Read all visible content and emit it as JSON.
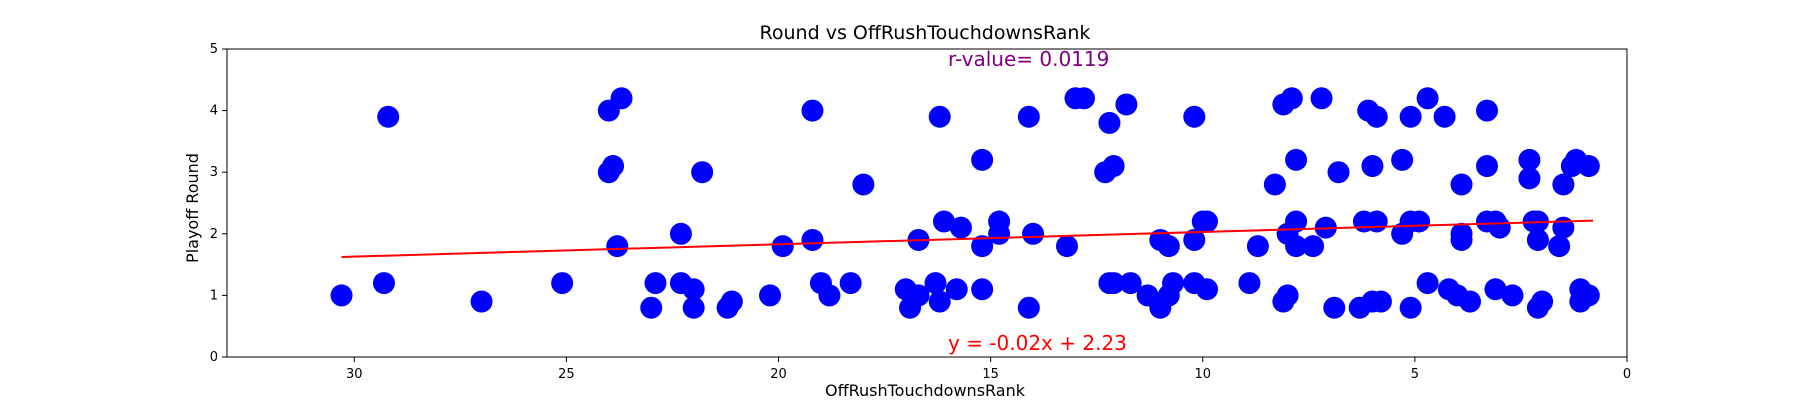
{
  "chart_data": {
    "type": "scatter",
    "title": "Round vs OffRushTouchdownsRank",
    "xlabel": "OffRushTouchdownsRank",
    "ylabel": "Playoff Round",
    "xlim": [
      33,
      0
    ],
    "ylim": [
      0,
      5
    ],
    "x_inverted": true,
    "x_ticks": [
      "30",
      "25",
      "20",
      "15",
      "10",
      "5",
      "0"
    ],
    "y_ticks": [
      "0",
      "1",
      "2",
      "3",
      "4",
      "5"
    ],
    "grid": false,
    "legend": "none",
    "point_color": "#0000ff",
    "line_color": "#ff0000",
    "regression": {
      "slope": -0.02,
      "intercept": 2.23,
      "x_range": [
        30.3,
        0.8
      ]
    },
    "annotations": {
      "r_value": "r-value= 0.0119",
      "r_value_color": "#800080",
      "equation": "y = -0.02x + 2.23",
      "equation_color": "#ff0000"
    },
    "points": [
      {
        "x": 30.3,
        "y": 1.0
      },
      {
        "x": 29.3,
        "y": 1.2
      },
      {
        "x": 29.2,
        "y": 3.9
      },
      {
        "x": 27.0,
        "y": 0.9
      },
      {
        "x": 25.1,
        "y": 1.2
      },
      {
        "x": 24.0,
        "y": 4.0
      },
      {
        "x": 24.0,
        "y": 3.0
      },
      {
        "x": 23.9,
        "y": 3.1
      },
      {
        "x": 23.8,
        "y": 1.8
      },
      {
        "x": 23.7,
        "y": 4.2
      },
      {
        "x": 23.0,
        "y": 0.8
      },
      {
        "x": 22.9,
        "y": 1.2
      },
      {
        "x": 22.3,
        "y": 2.0
      },
      {
        "x": 22.3,
        "y": 1.2
      },
      {
        "x": 22.0,
        "y": 1.1
      },
      {
        "x": 22.0,
        "y": 0.8
      },
      {
        "x": 21.8,
        "y": 3.0
      },
      {
        "x": 21.2,
        "y": 0.8
      },
      {
        "x": 21.1,
        "y": 0.9
      },
      {
        "x": 20.2,
        "y": 1.0
      },
      {
        "x": 19.9,
        "y": 1.8
      },
      {
        "x": 19.2,
        "y": 4.0
      },
      {
        "x": 19.2,
        "y": 1.9
      },
      {
        "x": 19.0,
        "y": 1.2
      },
      {
        "x": 18.8,
        "y": 1.0
      },
      {
        "x": 18.3,
        "y": 1.2
      },
      {
        "x": 18.0,
        "y": 2.8
      },
      {
        "x": 17.0,
        "y": 1.1
      },
      {
        "x": 16.9,
        "y": 0.8
      },
      {
        "x": 16.7,
        "y": 1.9
      },
      {
        "x": 16.7,
        "y": 1.0
      },
      {
        "x": 16.3,
        "y": 1.2
      },
      {
        "x": 16.2,
        "y": 3.9
      },
      {
        "x": 16.1,
        "y": 2.2
      },
      {
        "x": 16.2,
        "y": 0.9
      },
      {
        "x": 15.8,
        "y": 1.1
      },
      {
        "x": 15.7,
        "y": 2.1
      },
      {
        "x": 15.2,
        "y": 3.2
      },
      {
        "x": 15.2,
        "y": 1.8
      },
      {
        "x": 15.2,
        "y": 1.1
      },
      {
        "x": 14.8,
        "y": 2.0
      },
      {
        "x": 14.8,
        "y": 2.2
      },
      {
        "x": 14.1,
        "y": 3.9
      },
      {
        "x": 14.1,
        "y": 0.8
      },
      {
        "x": 14.0,
        "y": 2.0
      },
      {
        "x": 13.2,
        "y": 1.8
      },
      {
        "x": 13.0,
        "y": 4.2
      },
      {
        "x": 12.8,
        "y": 4.2
      },
      {
        "x": 12.3,
        "y": 3.0
      },
      {
        "x": 12.2,
        "y": 3.8
      },
      {
        "x": 12.2,
        "y": 1.2
      },
      {
        "x": 12.1,
        "y": 1.2
      },
      {
        "x": 12.1,
        "y": 3.1
      },
      {
        "x": 11.8,
        "y": 4.1
      },
      {
        "x": 11.7,
        "y": 1.2
      },
      {
        "x": 11.3,
        "y": 1.0
      },
      {
        "x": 11.0,
        "y": 1.9
      },
      {
        "x": 11.0,
        "y": 0.8
      },
      {
        "x": 10.8,
        "y": 1.8
      },
      {
        "x": 10.8,
        "y": 1.0
      },
      {
        "x": 10.7,
        "y": 1.2
      },
      {
        "x": 10.2,
        "y": 1.2
      },
      {
        "x": 10.2,
        "y": 3.9
      },
      {
        "x": 10.2,
        "y": 1.9
      },
      {
        "x": 10.0,
        "y": 2.2
      },
      {
        "x": 9.9,
        "y": 1.1
      },
      {
        "x": 9.9,
        "y": 2.2
      },
      {
        "x": 8.9,
        "y": 1.2
      },
      {
        "x": 8.7,
        "y": 1.8
      },
      {
        "x": 8.3,
        "y": 2.8
      },
      {
        "x": 8.1,
        "y": 4.1
      },
      {
        "x": 7.9,
        "y": 4.2
      },
      {
        "x": 8.1,
        "y": 0.9
      },
      {
        "x": 8.0,
        "y": 1.0
      },
      {
        "x": 8.0,
        "y": 2.0
      },
      {
        "x": 7.8,
        "y": 3.2
      },
      {
        "x": 7.8,
        "y": 2.2
      },
      {
        "x": 7.8,
        "y": 1.8
      },
      {
        "x": 7.4,
        "y": 1.8
      },
      {
        "x": 7.2,
        "y": 4.2
      },
      {
        "x": 7.1,
        "y": 2.1
      },
      {
        "x": 6.8,
        "y": 3.0
      },
      {
        "x": 6.9,
        "y": 0.8
      },
      {
        "x": 6.3,
        "y": 0.8
      },
      {
        "x": 6.2,
        "y": 2.2
      },
      {
        "x": 6.1,
        "y": 4.0
      },
      {
        "x": 6.0,
        "y": 3.1
      },
      {
        "x": 6.0,
        "y": 0.9
      },
      {
        "x": 5.9,
        "y": 3.9
      },
      {
        "x": 5.9,
        "y": 2.2
      },
      {
        "x": 5.8,
        "y": 0.9
      },
      {
        "x": 5.3,
        "y": 3.2
      },
      {
        "x": 5.3,
        "y": 2.0
      },
      {
        "x": 5.1,
        "y": 3.9
      },
      {
        "x": 5.1,
        "y": 2.2
      },
      {
        "x": 5.1,
        "y": 0.8
      },
      {
        "x": 4.9,
        "y": 2.2
      },
      {
        "x": 4.7,
        "y": 1.2
      },
      {
        "x": 4.7,
        "y": 4.2
      },
      {
        "x": 4.3,
        "y": 3.9
      },
      {
        "x": 4.2,
        "y": 1.1
      },
      {
        "x": 4.0,
        "y": 1.0
      },
      {
        "x": 3.9,
        "y": 2.8
      },
      {
        "x": 3.9,
        "y": 2.0
      },
      {
        "x": 3.9,
        "y": 1.9
      },
      {
        "x": 3.7,
        "y": 0.9
      },
      {
        "x": 3.3,
        "y": 4.0
      },
      {
        "x": 3.3,
        "y": 3.1
      },
      {
        "x": 3.3,
        "y": 2.2
      },
      {
        "x": 3.1,
        "y": 2.2
      },
      {
        "x": 3.0,
        "y": 2.1
      },
      {
        "x": 3.1,
        "y": 1.1
      },
      {
        "x": 2.7,
        "y": 1.0
      },
      {
        "x": 2.3,
        "y": 3.2
      },
      {
        "x": 2.3,
        "y": 2.9
      },
      {
        "x": 2.2,
        "y": 2.2
      },
      {
        "x": 2.1,
        "y": 2.2
      },
      {
        "x": 2.1,
        "y": 1.9
      },
      {
        "x": 2.1,
        "y": 0.8
      },
      {
        "x": 2.0,
        "y": 0.9
      },
      {
        "x": 1.6,
        "y": 1.8
      },
      {
        "x": 1.5,
        "y": 2.8
      },
      {
        "x": 1.5,
        "y": 2.1
      },
      {
        "x": 1.3,
        "y": 3.1
      },
      {
        "x": 1.2,
        "y": 3.2
      },
      {
        "x": 1.1,
        "y": 1.1
      },
      {
        "x": 1.1,
        "y": 0.9
      },
      {
        "x": 0.9,
        "y": 3.1
      },
      {
        "x": 0.9,
        "y": 1.0
      }
    ]
  }
}
